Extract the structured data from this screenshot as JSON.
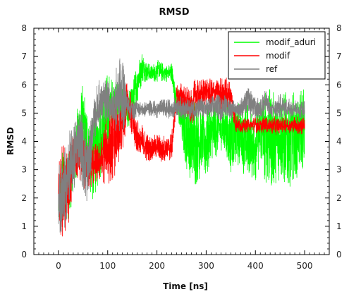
{
  "chart_data": {
    "type": "line",
    "title": "RMSD",
    "xlabel": "Time [ns]",
    "ylabel": "RMSD",
    "xlim": [
      -50,
      550
    ],
    "ylim": [
      0,
      8
    ],
    "xticks": [
      0,
      100,
      200,
      300,
      400,
      500
    ],
    "yticks": [
      0,
      1,
      2,
      3,
      4,
      5,
      6,
      7,
      8
    ],
    "grid": false,
    "legend_position": "top-right",
    "series": [
      {
        "name": "modif_aduri",
        "color": "#00ff00",
        "points": [
          [
            0,
            0.9,
            2.6
          ],
          [
            10,
            1.8,
            3.9
          ],
          [
            20,
            1.2,
            3.5
          ],
          [
            30,
            2.0,
            4.2
          ],
          [
            40,
            2.8,
            5.6
          ],
          [
            50,
            3.0,
            6.1
          ],
          [
            60,
            2.4,
            5.2
          ],
          [
            70,
            1.8,
            4.8
          ],
          [
            80,
            2.4,
            5.4
          ],
          [
            90,
            3.0,
            6.0
          ],
          [
            100,
            3.2,
            6.5
          ],
          [
            110,
            4.3,
            6.2
          ],
          [
            120,
            4.6,
            6.3
          ],
          [
            130,
            4.6,
            5.9
          ],
          [
            140,
            4.3,
            5.8
          ],
          [
            150,
            4.7,
            6.0
          ],
          [
            160,
            5.3,
            6.9
          ],
          [
            170,
            6.1,
            7.2
          ],
          [
            180,
            6.1,
            6.8
          ],
          [
            190,
            6.1,
            6.7
          ],
          [
            200,
            6.1,
            6.9
          ],
          [
            210,
            6.1,
            6.8
          ],
          [
            220,
            6.1,
            6.7
          ],
          [
            230,
            6.1,
            6.8
          ],
          [
            240,
            4.9,
            5.9
          ],
          [
            250,
            3.8,
            5.8
          ],
          [
            260,
            3.0,
            5.8
          ],
          [
            270,
            2.2,
            5.9
          ],
          [
            280,
            2.4,
            5.6
          ],
          [
            290,
            2.8,
            5.4
          ],
          [
            300,
            2.6,
            5.3
          ],
          [
            310,
            3.0,
            5.4
          ],
          [
            320,
            3.4,
            5.5
          ],
          [
            330,
            3.7,
            5.2
          ],
          [
            340,
            3.3,
            5.6
          ],
          [
            350,
            2.8,
            5.3
          ],
          [
            360,
            2.8,
            5.6
          ],
          [
            370,
            3.2,
            5.3
          ],
          [
            380,
            2.5,
            5.6
          ],
          [
            390,
            2.6,
            5.3
          ],
          [
            400,
            2.6,
            5.2
          ],
          [
            410,
            3.2,
            5.7
          ],
          [
            420,
            2.5,
            5.8
          ],
          [
            430,
            2.3,
            5.9
          ],
          [
            440,
            2.5,
            5.7
          ],
          [
            450,
            2.6,
            5.6
          ],
          [
            460,
            2.2,
            5.8
          ],
          [
            470,
            2.4,
            6.0
          ],
          [
            480,
            2.5,
            5.7
          ],
          [
            490,
            3.0,
            5.9
          ],
          [
            500,
            3.0,
            6.0
          ]
        ]
      },
      {
        "name": "modif",
        "color": "#ff0000",
        "points": [
          [
            0,
            0.5,
            3.5
          ],
          [
            10,
            0.4,
            4.0
          ],
          [
            20,
            0.8,
            3.6
          ],
          [
            30,
            2.5,
            4.3
          ],
          [
            40,
            2.6,
            4.5
          ],
          [
            50,
            2.3,
            4.4
          ],
          [
            60,
            2.2,
            3.8
          ],
          [
            70,
            2.4,
            4.0
          ],
          [
            80,
            2.6,
            3.9
          ],
          [
            90,
            2.5,
            4.3
          ],
          [
            100,
            2.4,
            5.1
          ],
          [
            110,
            2.6,
            5.3
          ],
          [
            120,
            3.0,
            5.5
          ],
          [
            130,
            3.3,
            5.6
          ],
          [
            140,
            5.0,
            6.2
          ],
          [
            150,
            4.0,
            5.6
          ],
          [
            160,
            3.4,
            4.8
          ],
          [
            170,
            3.3,
            4.6
          ],
          [
            180,
            3.3,
            4.3
          ],
          [
            190,
            3.3,
            4.2
          ],
          [
            200,
            3.4,
            4.3
          ],
          [
            210,
            3.2,
            4.2
          ],
          [
            220,
            3.3,
            4.3
          ],
          [
            230,
            3.3,
            4.3
          ],
          [
            240,
            5.2,
            6.0
          ],
          [
            250,
            5.0,
            6.1
          ],
          [
            260,
            4.7,
            6.0
          ],
          [
            270,
            4.5,
            5.8
          ],
          [
            280,
            5.0,
            6.4
          ],
          [
            290,
            5.0,
            6.2
          ],
          [
            300,
            5.3,
            6.3
          ],
          [
            310,
            5.0,
            6.2
          ],
          [
            320,
            5.4,
            6.2
          ],
          [
            330,
            5.1,
            6.3
          ],
          [
            340,
            5.0,
            6.3
          ],
          [
            350,
            5.2,
            6.1
          ],
          [
            360,
            4.3,
            5.0
          ],
          [
            370,
            4.3,
            4.8
          ],
          [
            380,
            4.3,
            4.8
          ],
          [
            390,
            4.4,
            4.8
          ],
          [
            400,
            4.3,
            4.9
          ],
          [
            410,
            4.3,
            4.8
          ],
          [
            420,
            4.3,
            4.9
          ],
          [
            430,
            4.3,
            4.8
          ],
          [
            440,
            4.2,
            4.9
          ],
          [
            450,
            4.3,
            4.8
          ],
          [
            460,
            4.3,
            4.9
          ],
          [
            470,
            4.3,
            4.8
          ],
          [
            480,
            4.3,
            4.9
          ],
          [
            490,
            4.2,
            4.9
          ],
          [
            500,
            4.3,
            4.9
          ]
        ]
      },
      {
        "name": "ref",
        "color": "#808080",
        "points": [
          [
            0,
            0.6,
            3.3
          ],
          [
            10,
            0.5,
            3.5
          ],
          [
            20,
            1.6,
            4.3
          ],
          [
            30,
            2.0,
            4.6
          ],
          [
            40,
            3.0,
            5.2
          ],
          [
            50,
            2.2,
            5.0
          ],
          [
            60,
            1.6,
            4.6
          ],
          [
            70,
            3.8,
            5.3
          ],
          [
            80,
            4.3,
            6.2
          ],
          [
            90,
            4.5,
            6.2
          ],
          [
            100,
            4.8,
            6.2
          ],
          [
            110,
            4.4,
            5.9
          ],
          [
            120,
            4.3,
            6.9
          ],
          [
            130,
            4.2,
            7.2
          ],
          [
            140,
            4.9,
            5.7
          ],
          [
            150,
            4.7,
            5.5
          ],
          [
            160,
            4.9,
            5.5
          ],
          [
            170,
            4.8,
            5.4
          ],
          [
            180,
            4.9,
            5.4
          ],
          [
            190,
            4.9,
            5.5
          ],
          [
            200,
            4.8,
            5.4
          ],
          [
            210,
            4.9,
            5.5
          ],
          [
            220,
            4.8,
            5.5
          ],
          [
            230,
            4.8,
            5.5
          ],
          [
            240,
            4.9,
            5.6
          ],
          [
            250,
            4.8,
            5.6
          ],
          [
            260,
            4.7,
            5.5
          ],
          [
            270,
            4.8,
            5.5
          ],
          [
            280,
            4.7,
            5.5
          ],
          [
            290,
            4.8,
            5.6
          ],
          [
            300,
            4.8,
            5.5
          ],
          [
            310,
            4.7,
            5.6
          ],
          [
            320,
            4.8,
            5.7
          ],
          [
            330,
            4.7,
            5.6
          ],
          [
            340,
            4.9,
            5.7
          ],
          [
            350,
            4.8,
            5.5
          ],
          [
            360,
            4.9,
            5.4
          ],
          [
            370,
            4.8,
            5.5
          ],
          [
            380,
            4.9,
            5.9
          ],
          [
            390,
            4.8,
            6.0
          ],
          [
            400,
            4.8,
            5.6
          ],
          [
            410,
            4.7,
            5.5
          ],
          [
            420,
            4.9,
            6.0
          ],
          [
            430,
            4.8,
            5.4
          ],
          [
            440,
            4.8,
            5.5
          ],
          [
            450,
            4.8,
            5.7
          ],
          [
            460,
            4.9,
            5.5
          ],
          [
            470,
            4.8,
            5.6
          ],
          [
            480,
            4.9,
            5.5
          ],
          [
            490,
            4.8,
            5.4
          ],
          [
            500,
            4.8,
            5.5
          ]
        ]
      }
    ]
  }
}
